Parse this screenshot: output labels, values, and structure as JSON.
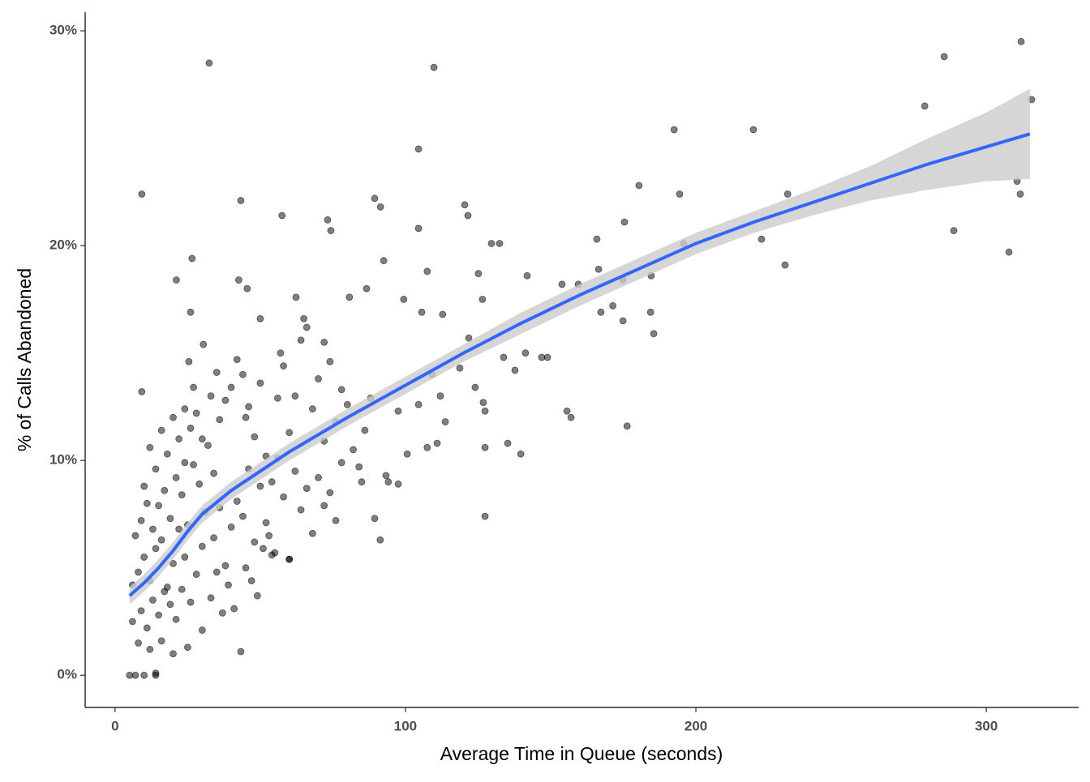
{
  "chart_data": {
    "type": "scatter",
    "x_label": "Average Time in Queue (seconds)",
    "y_label": "% of Calls Abandoned",
    "xlim": [
      -10.3,
      331.8
    ],
    "ylim": [
      -1.5,
      30.87
    ],
    "xticks": [
      0,
      100,
      200,
      300
    ],
    "yticks": [
      {
        "value": 0,
        "label": "0%"
      },
      {
        "value": 10,
        "label": "10%"
      },
      {
        "value": 20,
        "label": "20%"
      },
      {
        "value": 30,
        "label": "30%"
      }
    ],
    "point_color": "#000000",
    "x": [
      32.4,
      109.8,
      312,
      285.5,
      315.6,
      278.8,
      192.5,
      219.8,
      104.5,
      9.2,
      43.3,
      89.4,
      91.4,
      120.4,
      121.5,
      57.5,
      73.2,
      104.5,
      74.3,
      194.4,
      180.4,
      231.6,
      310.6,
      311.7,
      288.8,
      307.8,
      222.6,
      230.7,
      195.8,
      165.9,
      129.6,
      132.4,
      26.5,
      21.1,
      42.6,
      92.5,
      107.5,
      125.1,
      141.9,
      153.9,
      159.5,
      166.5,
      184.6,
      174.9,
      175.4,
      167.3,
      171.4,
      174.9,
      184.4,
      185.5,
      176.3,
      155.6,
      157.0,
      135.2,
      139.7,
      127.4,
      127.4,
      91.3,
      43.3,
      9.2,
      25.4,
      26.0,
      30.4,
      45.5,
      62.3,
      80.7,
      86.6,
      99.4,
      105.6,
      112.8,
      126.5,
      121.8,
      133.8,
      141.3,
      146.9,
      148.9,
      137.7,
      118.7,
      109.2,
      112.0,
      124.0,
      126.8,
      127.4,
      97.5,
      104.5,
      113.7,
      107.5,
      110.9,
      100.6,
      94.1,
      97.5,
      93.3,
      89.4,
      84.9,
      5,
      7,
      10,
      14,
      14,
      8,
      12,
      16,
      20,
      25,
      30,
      6,
      9,
      11,
      13,
      15,
      17,
      19,
      21,
      23,
      6,
      8,
      10,
      12,
      14,
      16,
      18,
      20,
      22,
      24,
      26,
      28,
      30,
      7,
      9,
      11,
      13,
      15,
      17,
      19,
      21,
      23,
      25,
      27,
      29,
      31,
      10,
      14,
      18,
      22,
      24,
      26,
      28,
      32,
      34,
      36,
      38,
      40,
      12,
      16,
      20,
      44,
      46,
      48,
      50,
      52,
      54,
      56,
      58,
      60,
      62,
      64,
      66,
      68,
      70,
      72,
      74,
      76,
      78,
      80,
      84,
      86,
      88,
      82,
      34,
      36,
      38,
      40,
      42,
      44,
      46,
      48,
      50,
      52,
      54,
      56,
      58,
      60,
      62,
      64,
      66,
      68,
      70,
      72,
      74,
      76,
      78,
      33,
      35,
      37,
      39,
      41,
      45,
      47,
      49,
      51,
      53,
      55,
      60,
      35,
      42,
      50,
      57,
      65,
      72,
      45,
      30,
      27,
      33,
      24
    ],
    "y": [
      28.5,
      28.3,
      29.5,
      28.8,
      26.8,
      26.5,
      25.4,
      25.4,
      24.5,
      22.4,
      22.1,
      22.2,
      21.8,
      21.9,
      21.4,
      21.4,
      21.2,
      20.8,
      20.7,
      22.4,
      22.8,
      22.4,
      23.0,
      22.4,
      20.7,
      19.7,
      20.3,
      19.1,
      20.1,
      20.3,
      20.1,
      20.1,
      19.4,
      18.4,
      18.4,
      19.3,
      18.8,
      18.7,
      18.6,
      18.2,
      18.2,
      18.9,
      18.6,
      18.4,
      21.1,
      16.9,
      17.2,
      16.5,
      16.9,
      15.9,
      11.6,
      12.3,
      12.0,
      10.8,
      10.3,
      10.6,
      7.4,
      6.3,
      1.1,
      13.2,
      14.6,
      16.9,
      15.4,
      18.0,
      17.6,
      17.6,
      18.0,
      17.5,
      16.9,
      16.8,
      17.5,
      15.7,
      14.8,
      15.0,
      14.8,
      14.8,
      14.2,
      14.3,
      14.0,
      13.0,
      13.4,
      12.7,
      12.3,
      12.3,
      12.6,
      11.8,
      10.6,
      10.8,
      10.3,
      9.0,
      8.9,
      9.3,
      7.3,
      9.0,
      0,
      0,
      0,
      0,
      0.1,
      1.5,
      1.2,
      1.6,
      1.0,
      1.3,
      2.1,
      2.5,
      3.0,
      2.2,
      3.5,
      2.8,
      3.9,
      3.3,
      2.6,
      4.0,
      4.2,
      4.8,
      5.5,
      4.4,
      5.9,
      6.3,
      4.1,
      5.2,
      6.8,
      5.5,
      3.4,
      4.7,
      6.0,
      6.5,
      7.2,
      8.0,
      6.8,
      7.9,
      8.6,
      7.3,
      9.2,
      8.4,
      7.0,
      9.8,
      8.9,
      7.6,
      8.8,
      9.6,
      10.3,
      11.0,
      9.9,
      11.5,
      12.2,
      10.7,
      9.4,
      11.9,
      12.8,
      13.4,
      10.6,
      11.4,
      12.0,
      14.0,
      12.5,
      11.1,
      13.6,
      10.2,
      9.0,
      12.9,
      14.4,
      11.3,
      13.0,
      15.6,
      16.2,
      12.4,
      13.8,
      10.9,
      14.6,
      11.8,
      13.3,
      12.6,
      9.7,
      11.4,
      12.9,
      10.5,
      6.4,
      7.8,
      5.1,
      6.9,
      8.1,
      7.4,
      9.6,
      6.2,
      8.8,
      7.1,
      5.6,
      10.1,
      8.3,
      5.4,
      9.5,
      7.7,
      8.7,
      6.6,
      9.2,
      7.9,
      8.5,
      7.2,
      9.9,
      3.6,
      4.8,
      2.9,
      4.2,
      3.1,
      5.0,
      4.4,
      3.7,
      5.9,
      6.5,
      5.7,
      5.4,
      14.1,
      14.7,
      16.6,
      15.0,
      16.6,
      15.5,
      12.0,
      11.0,
      13.4,
      13.0,
      12.4
    ],
    "smooth": {
      "color": "#3366ff",
      "band_color": "#cccccc",
      "x": [
        5,
        10,
        15,
        20,
        25,
        30,
        40,
        50,
        60,
        70,
        80,
        100,
        120,
        140,
        160,
        180,
        200,
        220,
        240,
        260,
        280,
        300,
        315
      ],
      "y": [
        3.7,
        4.3,
        5.0,
        5.8,
        6.7,
        7.5,
        8.6,
        9.5,
        10.4,
        11.2,
        12.0,
        13.5,
        15.0,
        16.4,
        17.7,
        18.9,
        20.1,
        21.1,
        22.0,
        22.9,
        23.8,
        24.6,
        25.2
      ],
      "ymin": [
        3.3,
        3.9,
        4.6,
        5.4,
        6.3,
        7.1,
        8.2,
        9.1,
        10.0,
        10.8,
        11.6,
        13.1,
        14.6,
        15.9,
        17.2,
        18.4,
        19.6,
        20.6,
        21.4,
        22.1,
        22.6,
        23.0,
        23.1
      ],
      "ymax": [
        4.1,
        4.7,
        5.4,
        6.2,
        7.1,
        7.9,
        9.0,
        9.9,
        10.8,
        11.6,
        12.4,
        13.9,
        15.4,
        16.9,
        18.2,
        19.4,
        20.6,
        21.6,
        22.6,
        23.7,
        25.0,
        26.2,
        27.3
      ]
    }
  }
}
